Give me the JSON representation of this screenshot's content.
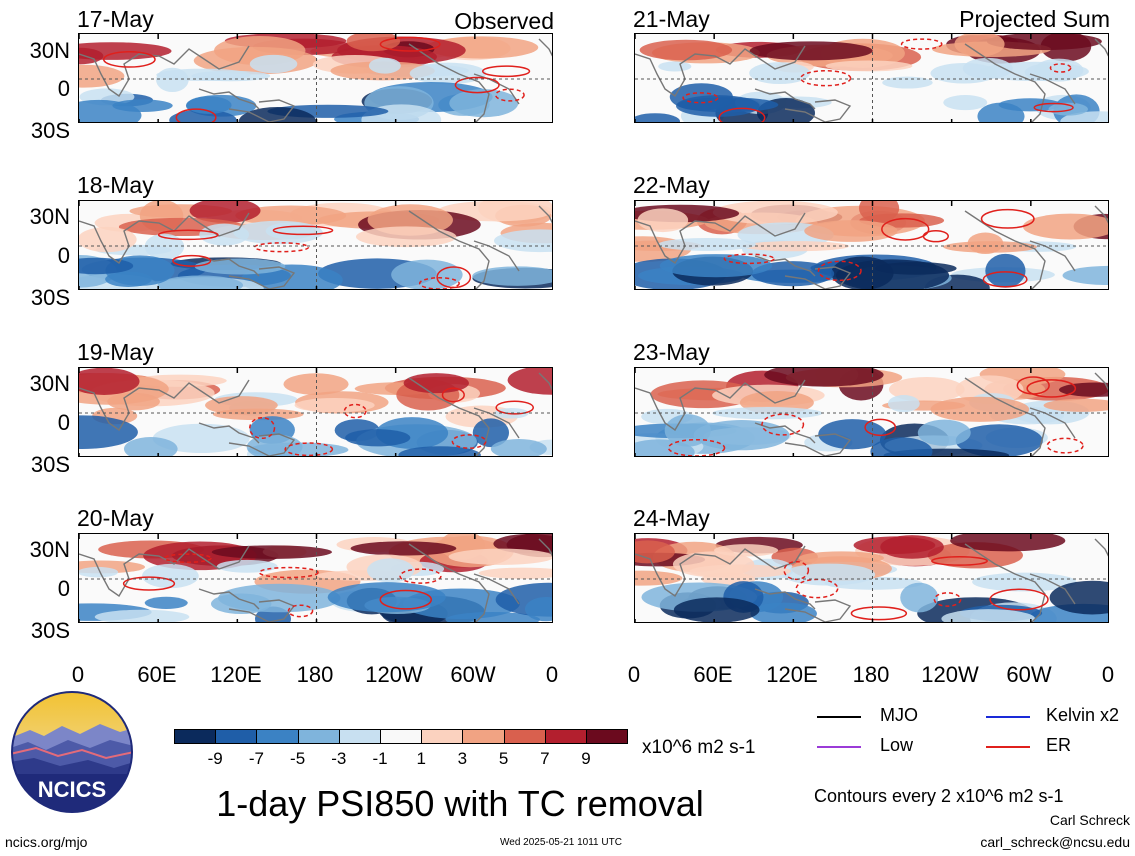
{
  "panels_left": [
    {
      "date": "17-May",
      "corner": "Observed"
    },
    {
      "date": "18-May",
      "corner": ""
    },
    {
      "date": "19-May",
      "corner": ""
    },
    {
      "date": "20-May",
      "corner": ""
    }
  ],
  "panels_right": [
    {
      "date": "21-May",
      "corner": "Projected Sum"
    },
    {
      "date": "22-May",
      "corner": ""
    },
    {
      "date": "23-May",
      "corner": ""
    },
    {
      "date": "24-May",
      "corner": ""
    }
  ],
  "lat_labels": [
    "30N",
    "0",
    "30S"
  ],
  "lon_labels": [
    "0",
    "60E",
    "120E",
    "180",
    "120W",
    "60W",
    "0"
  ],
  "colorbar": {
    "ticks": [
      "-9",
      "-7",
      "-5",
      "-3",
      "-1",
      "1",
      "3",
      "5",
      "7",
      "9"
    ],
    "units": "x10^6 m2 s-1",
    "colors": [
      "#0b2a5c",
      "#1f5ea8",
      "#3b82c4",
      "#7fb4dc",
      "#c8e0f1",
      "#f9f9f9",
      "#fbd2bf",
      "#f1a383",
      "#d9604e",
      "#b31f2e",
      "#6b0a1e"
    ]
  },
  "title": "1-day PSI850 with TC removal",
  "legend": [
    {
      "label": "MJO",
      "color": "#000000"
    },
    {
      "label": "Kelvin x2",
      "color": "#1a2ad8"
    },
    {
      "label": "Low",
      "color": "#9b3bd8"
    },
    {
      "label": "ER",
      "color": "#e0201c"
    }
  ],
  "contours_note": "Contours every 2 x10^6 m2 s-1",
  "logo_text": "NCICS",
  "footer": {
    "url": "ncics.org/mjo",
    "timestamp": "Wed 2025-05-21 1011 UTC",
    "author": "Carl Schreck",
    "email": "carl_schreck@ncsu.edu"
  }
}
